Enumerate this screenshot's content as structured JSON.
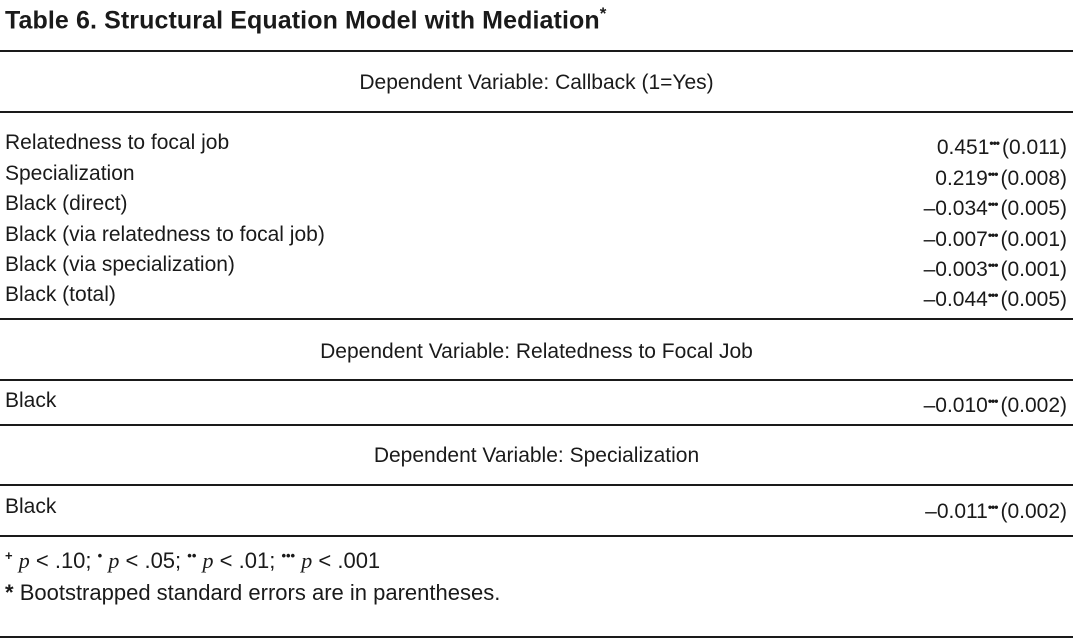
{
  "table": {
    "title": "Table 6.  Structural Equation Model with Mediation",
    "title_mark": "*",
    "sections": [
      {
        "heading": "Dependent Variable: Callback (1=Yes)",
        "rows": [
          {
            "label": "Relatedness to focal job",
            "coef": "0.451",
            "stars": "•••",
            "se": "(0.011)"
          },
          {
            "label": "Specialization",
            "coef": "0.219",
            "stars": "•••",
            "se": "(0.008)"
          },
          {
            "label": "Black (direct)",
            "coef": "–0.034",
            "stars": "•••",
            "se": "(0.005)"
          },
          {
            "label": "Black (via relatedness to focal job)",
            "coef": "–0.007",
            "stars": "•••",
            "se": "(0.001)"
          },
          {
            "label": "Black (via specialization)",
            "coef": "–0.003",
            "stars": "•••",
            "se": "(0.001)"
          },
          {
            "label": "Black (total)",
            "coef": "–0.044",
            "stars": "•••",
            "se": "(0.005)"
          }
        ]
      },
      {
        "heading": "Dependent Variable: Relatedness to Focal Job",
        "rows": [
          {
            "label": "Black",
            "coef": "–0.010",
            "stars": "•••",
            "se": "(0.002)"
          }
        ]
      },
      {
        "heading": "Dependent Variable: Specialization",
        "rows": [
          {
            "label": "Black",
            "coef": "–0.011",
            "stars": "•••",
            "se": "(0.002)"
          }
        ]
      }
    ],
    "notes": {
      "sig": [
        {
          "mark": "+",
          "p": "p",
          "op": "<",
          "val": ".10;"
        },
        {
          "mark": "•",
          "p": "p",
          "op": "<",
          "val": ".05;"
        },
        {
          "mark": "••",
          "p": "p",
          "op": "<",
          "val": ".01;"
        },
        {
          "mark": "•••",
          "p": "p",
          "op": "<",
          "val": ".001"
        }
      ],
      "footnote_mark": "*",
      "footnote_text": "Bootstrapped standard errors are in parentheses."
    }
  }
}
